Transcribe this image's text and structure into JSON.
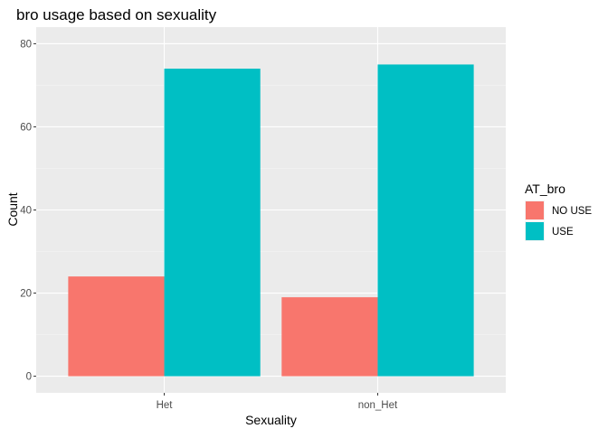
{
  "chart_data": {
    "type": "bar",
    "title": "bro usage based on sexuality",
    "xlabel": "Sexuality",
    "ylabel": "Count",
    "categories": [
      "Het",
      "non_Het"
    ],
    "series": [
      {
        "name": "NO USE",
        "values": [
          24,
          19
        ],
        "color": "#F8766D"
      },
      {
        "name": "USE",
        "values": [
          74,
          75
        ],
        "color": "#00BFC4"
      }
    ],
    "ylim": [
      -4,
      84
    ],
    "yticks": [
      0,
      20,
      40,
      60,
      80
    ],
    "grid": true,
    "legend": {
      "title": "AT_bro",
      "position": "right"
    },
    "panel_background": "#EBEBEB"
  }
}
